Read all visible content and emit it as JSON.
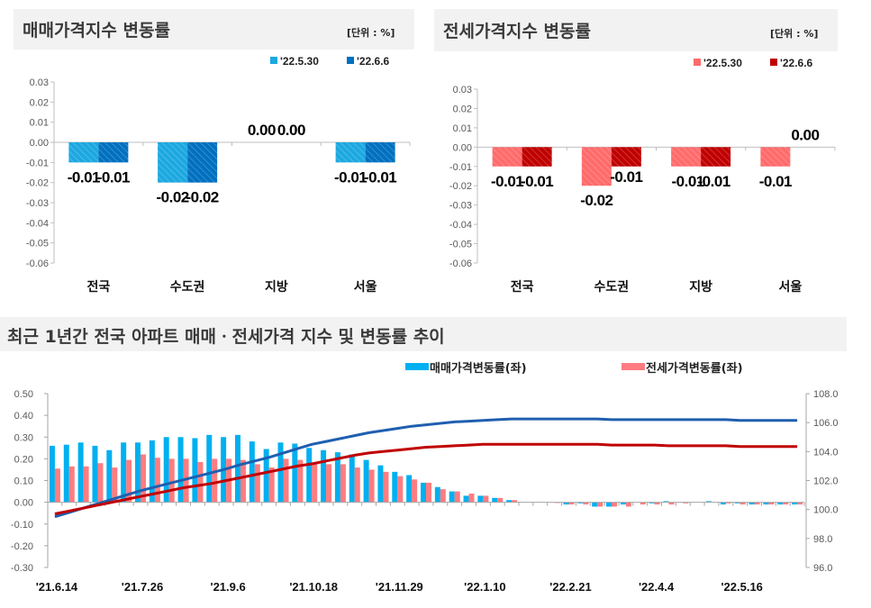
{
  "chart_data": [
    {
      "type": "bar",
      "title": "매매가격지수 변동률",
      "unit": "[단위 : %]",
      "categories": [
        "전국",
        "수도권",
        "지방",
        "서울"
      ],
      "series": [
        {
          "name": "'22.5.30",
          "values": [
            -0.01,
            -0.02,
            0.0,
            -0.01
          ],
          "color": "#1ca8e0",
          "hatched": true
        },
        {
          "name": "'22.6.6",
          "values": [
            -0.01,
            -0.02,
            0.0,
            -0.01
          ],
          "color": "#0070c0",
          "hatched": true
        }
      ],
      "data_labels": [
        [
          "-0.01",
          "-0.02",
          "0.00",
          "-0.01"
        ],
        [
          "-0.01",
          "-0.02",
          "0.00",
          "-0.01"
        ]
      ],
      "ylim": [
        -0.06,
        0.03
      ],
      "yticks": [
        "0.03",
        "0.02",
        "0.01",
        "0.00",
        "-0.01",
        "-0.02",
        "-0.03",
        "-0.04",
        "-0.05",
        "-0.06"
      ],
      "legend": "top-right",
      "grid": false
    },
    {
      "type": "bar",
      "title": "전세가격지수 변동률",
      "unit": "[단위 : %]",
      "categories": [
        "전국",
        "수도권",
        "지방",
        "서울"
      ],
      "series": [
        {
          "name": "'22.5.30",
          "values": [
            -0.01,
            -0.02,
            -0.01,
            -0.01
          ],
          "color": "#ff6b6b",
          "hatched": true
        },
        {
          "name": "'22.6.6",
          "values": [
            -0.01,
            -0.01,
            -0.01,
            0.0
          ],
          "color": "#c00000",
          "hatched": true
        }
      ],
      "data_labels": [
        [
          "-0.01",
          "-0.02",
          "-0.01",
          "-0.01"
        ],
        [
          "-0.01",
          "-0.01",
          "-0.01",
          "0.00"
        ]
      ],
      "ylim": [
        -0.06,
        0.03
      ],
      "yticks": [
        "0.03",
        "0.02",
        "0.01",
        "0.00",
        "-0.01",
        "-0.02",
        "-0.03",
        "-0.04",
        "-0.05",
        "-0.06"
      ],
      "legend": "top-right",
      "grid": false
    },
    {
      "type": "bar+line",
      "title": "최근 1년간 전국 아파트 매매ㆍ전세가격 지수 및 변동률 추이",
      "x_tick_labels": [
        "'21.6.14",
        "'21.7.26",
        "'21.9.6",
        "'21.10.18",
        "'21.11.29",
        "'22.1.10",
        "'22.2.21",
        "'22.4.4",
        "'22.5.16"
      ],
      "x_tick_every_weeks": 6,
      "n_weeks": 53,
      "ylim_left": [
        -0.3,
        0.5
      ],
      "yticks_left": [
        "0.50",
        "0.40",
        "0.30",
        "0.20",
        "0.10",
        "0.00",
        "-0.10",
        "-0.20",
        "-0.30"
      ],
      "ylim_right": [
        96.0,
        108.0
      ],
      "yticks_right": [
        "108.0",
        "106.0",
        "104.0",
        "102.0",
        "100.0",
        "98.0",
        "96.0"
      ],
      "legend": "top",
      "grid": false,
      "bar_series": [
        {
          "name": "매매가격변동률(좌)",
          "color": "#00b0f0",
          "values": [
            0.26,
            0.265,
            0.275,
            0.26,
            0.24,
            0.275,
            0.275,
            0.285,
            0.3,
            0.3,
            0.295,
            0.31,
            0.3,
            0.31,
            0.28,
            0.245,
            0.275,
            0.27,
            0.25,
            0.24,
            0.23,
            0.22,
            0.195,
            0.17,
            0.14,
            0.125,
            0.09,
            0.07,
            0.05,
            0.03,
            0.03,
            0.02,
            0.01,
            0.0,
            0.0,
            0.0,
            -0.01,
            -0.005,
            -0.02,
            -0.02,
            -0.01,
            0.0,
            -0.005,
            0.005,
            0.0,
            0.0,
            0.005,
            -0.01,
            -0.005,
            -0.01,
            -0.01,
            -0.01,
            -0.01
          ]
        },
        {
          "name": "전세가격변동률(좌)",
          "color": "#ff7c80",
          "values": [
            0.155,
            0.165,
            0.165,
            0.18,
            0.16,
            0.195,
            0.22,
            0.205,
            0.2,
            0.2,
            0.185,
            0.2,
            0.2,
            0.195,
            0.175,
            0.16,
            0.2,
            0.195,
            0.18,
            0.175,
            0.175,
            0.16,
            0.15,
            0.14,
            0.12,
            0.105,
            0.09,
            0.06,
            0.05,
            0.04,
            0.03,
            0.02,
            0.01,
            0.0,
            0.0,
            -0.003,
            -0.01,
            -0.01,
            -0.02,
            -0.02,
            -0.02,
            -0.01,
            -0.01,
            -0.01,
            -0.005,
            0.0,
            0.0,
            -0.005,
            -0.01,
            -0.01,
            -0.01,
            -0.01,
            -0.01
          ]
        }
      ],
      "line_series": [
        {
          "color": "#1f5fb0",
          "axis": "right",
          "values": [
            99.5,
            99.8,
            100.1,
            100.4,
            100.7,
            101.0,
            101.3,
            101.55,
            101.8,
            102.05,
            102.3,
            102.55,
            102.8,
            103.1,
            103.35,
            103.6,
            103.9,
            104.2,
            104.5,
            104.7,
            104.9,
            105.1,
            105.3,
            105.45,
            105.6,
            105.75,
            105.85,
            105.95,
            106.05,
            106.1,
            106.15,
            106.2,
            106.25,
            106.25,
            106.25,
            106.25,
            106.25,
            106.25,
            106.25,
            106.2,
            106.2,
            106.2,
            106.2,
            106.2,
            106.2,
            106.2,
            106.2,
            106.2,
            106.15,
            106.15,
            106.15,
            106.15,
            106.15
          ]
        },
        {
          "color": "#c00000",
          "axis": "right",
          "values": [
            99.7,
            99.9,
            100.1,
            100.3,
            100.5,
            100.7,
            100.9,
            101.1,
            101.3,
            101.5,
            101.65,
            101.8,
            102.0,
            102.2,
            102.4,
            102.6,
            102.8,
            103.0,
            103.15,
            103.35,
            103.55,
            103.75,
            103.9,
            104.0,
            104.1,
            104.2,
            104.3,
            104.35,
            104.4,
            104.45,
            104.5,
            104.5,
            104.5,
            104.5,
            104.5,
            104.5,
            104.5,
            104.5,
            104.5,
            104.45,
            104.45,
            104.45,
            104.45,
            104.4,
            104.4,
            104.4,
            104.4,
            104.4,
            104.35,
            104.35,
            104.35,
            104.35,
            104.35
          ]
        }
      ]
    }
  ]
}
